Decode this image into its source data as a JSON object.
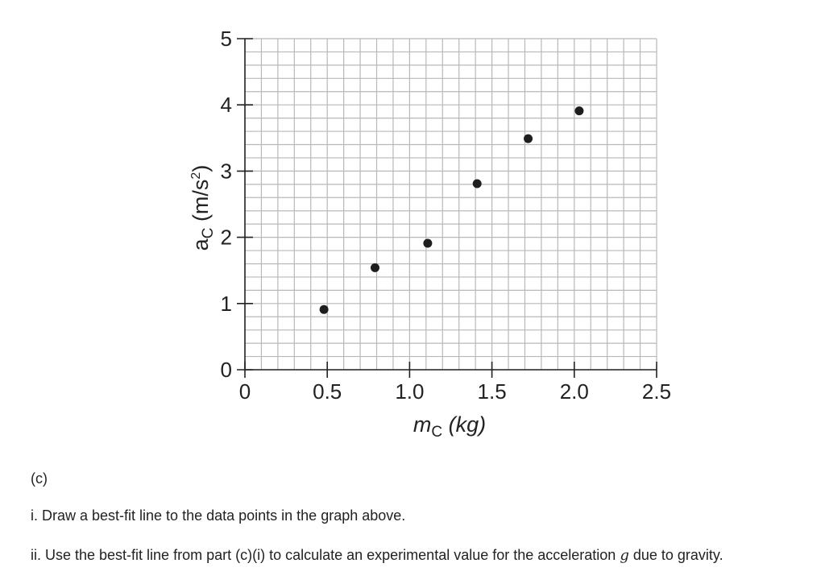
{
  "chart_data": {
    "type": "scatter",
    "xlabel": {
      "var": "m",
      "sub": "C",
      "unit": " (kg)"
    },
    "ylabel": {
      "var": "a",
      "sub": "C",
      "unit": " (m/s",
      "sup": "2",
      "close": ")"
    },
    "xlim": [
      0,
      2.5
    ],
    "ylim": [
      0,
      5
    ],
    "xticks": [
      "0",
      "0.5",
      "1.0",
      "1.5",
      "2.0",
      "2.5"
    ],
    "xtick_values": [
      0,
      0.5,
      1.0,
      1.5,
      2.0,
      2.5
    ],
    "yticks": [
      "0",
      "1",
      "2",
      "3",
      "4",
      "5"
    ],
    "ytick_values": [
      0,
      1,
      2,
      3,
      4,
      5
    ],
    "grid": true,
    "x": [
      0.48,
      0.79,
      1.11,
      1.41,
      1.72,
      2.03
    ],
    "y": [
      0.91,
      1.54,
      1.91,
      2.81,
      3.49,
      3.91
    ],
    "colors": {
      "grid": "#b8b8b8",
      "axis": "#222222",
      "point": "#1e1e1e"
    }
  },
  "question": {
    "part": "(c)",
    "line1": "i. Draw a best-fit line to the data points in the graph above.",
    "line2_before": "ii. Use the best-fit line from part (c)(i) to calculate an experimental value for the acceleration ",
    "line2_var": "g",
    "line2_after": " due to gravity."
  }
}
